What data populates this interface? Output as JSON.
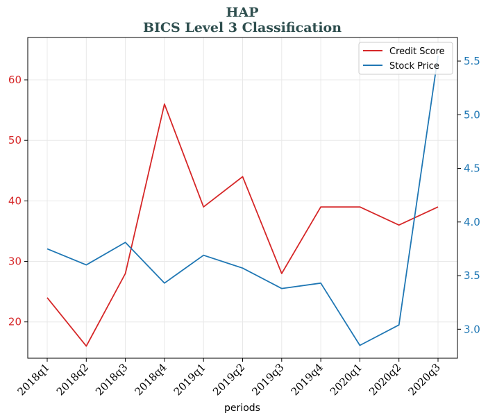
{
  "chart_data": {
    "type": "line",
    "title": "HAP",
    "subtitle": "BICS Level 3 Classification",
    "xlabel": "periods",
    "categories": [
      "2018q1",
      "2018q2",
      "2018q3",
      "2018q4",
      "2019q1",
      "2019q2",
      "2019q3",
      "2019q4",
      "2020q1",
      "2020q2",
      "2020q3"
    ],
    "series": [
      {
        "name": "Credit Score",
        "axis": "left",
        "color": "#d62728",
        "values": [
          24,
          16,
          28,
          56,
          39,
          44,
          28,
          39,
          39,
          36,
          39
        ]
      },
      {
        "name": "Stock Price",
        "axis": "right",
        "color": "#1f77b4",
        "values": [
          3.75,
          3.6,
          3.81,
          3.43,
          3.69,
          3.57,
          3.38,
          3.43,
          2.85,
          3.04,
          5.55
        ]
      }
    ],
    "y_left": {
      "ylim": [
        14,
        67
      ],
      "ticks": [
        20,
        30,
        40,
        50,
        60
      ],
      "tick_labels": [
        "20",
        "30",
        "40",
        "50",
        "60"
      ],
      "color": "#d62728"
    },
    "y_right": {
      "ylim": [
        2.73,
        5.72
      ],
      "ticks": [
        3.0,
        3.5,
        4.0,
        4.5,
        5.0,
        5.5
      ],
      "tick_labels": [
        "3.0",
        "3.5",
        "4.0",
        "4.5",
        "5.0",
        "5.5"
      ],
      "color": "#1f77b4"
    },
    "grid": true,
    "legend": {
      "placement": "top-right",
      "entries": [
        "Credit Score",
        "Stock Price"
      ]
    }
  }
}
